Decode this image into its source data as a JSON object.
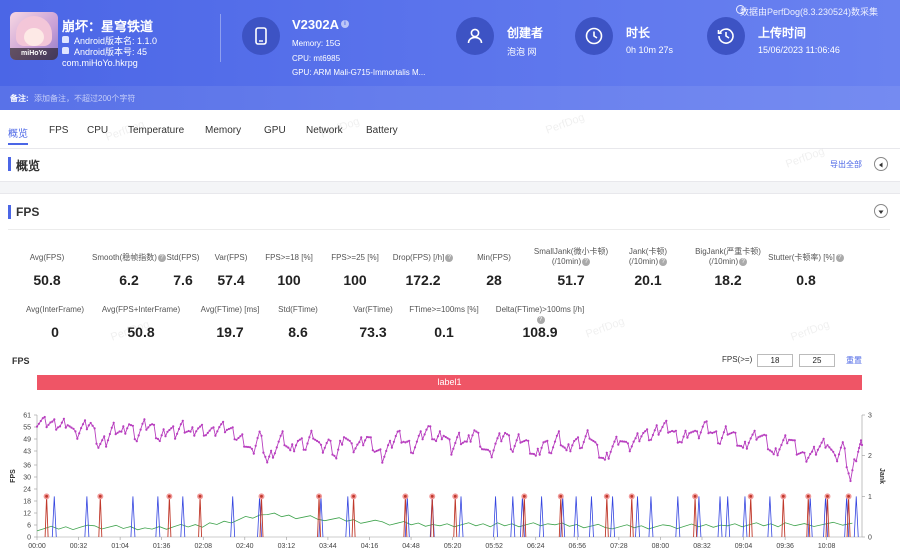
{
  "app": {
    "name": "崩坏：星穹铁道",
    "android_version": "Android版本名: 1.1.0",
    "android_code": "Android版本号: 45",
    "package": "com.miHoYo.hkrpg",
    "icon_text": "miHoYo"
  },
  "device": {
    "name": "V2302A",
    "memory": "Memory: 15G",
    "cpu": "CPU: mt6985",
    "gpu": "GPU: ARM Mali-G715-Immortalis M..."
  },
  "creator": {
    "title": "创建者",
    "value": "泡泡 网"
  },
  "duration": {
    "title": "时长",
    "value": "0h 10m 27s"
  },
  "upload": {
    "title": "上传时间",
    "value": "15/06/2023 11:06:46"
  },
  "source_note": "数据由PerfDog(8.3.230524)数采集",
  "note": {
    "label": "备注:",
    "placeholder": "添加备注，不超过200个字符"
  },
  "tabs": [
    "概览",
    "FPS",
    "CPU",
    "Temperature",
    "Memory",
    "GPU",
    "Network",
    "Battery"
  ],
  "overview": {
    "title": "概览",
    "export": "导出全部"
  },
  "fps_section": {
    "title": "FPS",
    "row1": [
      {
        "label": "Avg(FPS)",
        "value": "50.8"
      },
      {
        "label": "Smooth(稳帧指数)",
        "value": "6.2",
        "help": true
      },
      {
        "label": "Std(FPS)",
        "value": "7.6"
      },
      {
        "label": "Var(FPS)",
        "value": "57.4"
      },
      {
        "label": "FPS>=18 [%]",
        "value": "100"
      },
      {
        "label": "FPS>=25 [%]",
        "value": "100"
      },
      {
        "label": "Drop(FPS) [/h]",
        "value": "172.2",
        "help": true
      },
      {
        "label": "Min(FPS)",
        "value": "28"
      },
      {
        "label": "SmallJank(微小卡顿)\n(/10min)",
        "value": "51.7",
        "help": true
      },
      {
        "label": "Jank(卡顿)\n(/10min)",
        "value": "20.1",
        "help": true
      },
      {
        "label": "BigJank(严重卡顿)\n(/10min)",
        "value": "18.2",
        "help": true
      },
      {
        "label": "Stutter(卡顿率) [%]",
        "value": "0.8",
        "help": true
      }
    ],
    "row2": [
      {
        "label": "Avg(InterFrame)",
        "value": "0"
      },
      {
        "label": "Avg(FPS+InterFrame)",
        "value": "50.8"
      },
      {
        "label": "Avg(FTime) [ms]",
        "value": "19.7"
      },
      {
        "label": "Std(FTime)",
        "value": "8.6"
      },
      {
        "label": "Var(FTime)",
        "value": "73.3"
      },
      {
        "label": "FTime>=100ms [%]",
        "value": "0.1"
      },
      {
        "label": "Delta(FTime)>100ms [/h]",
        "value": "108.9",
        "help": true
      }
    ],
    "threshold_label": "FPS(>=)",
    "threshold1": "18",
    "threshold2": "25",
    "reset": "重置",
    "chart_label": "label1"
  },
  "watermark": "PerfDog",
  "colors": {
    "accent": "#4b66e6",
    "fps": "#b83fbf",
    "jank": "#3445e0",
    "bigjank": "#c0392b",
    "ftime": "#3fa34d",
    "label": "#ef5566"
  },
  "chart_data": {
    "type": "line",
    "title": "FPS",
    "ylabel": "FPS",
    "y2label": "Jank",
    "ylim": [
      0,
      61
    ],
    "y2lim": [
      0,
      3
    ],
    "yticks": [
      0,
      6,
      12,
      18,
      24,
      30,
      36,
      43,
      49,
      55,
      61
    ],
    "y2ticks": [
      0,
      1,
      2,
      3
    ],
    "xticks": [
      "00:00",
      "00:32",
      "01:04",
      "01:36",
      "02:08",
      "02:40",
      "03:12",
      "03:44",
      "04:16",
      "04:48",
      "05:20",
      "05:52",
      "06:24",
      "06:56",
      "07:28",
      "08:00",
      "08:32",
      "09:04",
      "09:36",
      "10:08"
    ],
    "series": [
      {
        "name": "FPS",
        "axis": "left",
        "points": [
          [
            0,
            58
          ],
          [
            8,
            58
          ],
          [
            16,
            57
          ],
          [
            24,
            56
          ],
          [
            32,
            58
          ],
          [
            40,
            50
          ],
          [
            48,
            55
          ],
          [
            56,
            57
          ],
          [
            64,
            46
          ],
          [
            72,
            48
          ],
          [
            80,
            55
          ],
          [
            88,
            52
          ],
          [
            96,
            57
          ],
          [
            104,
            50
          ],
          [
            112,
            56
          ],
          [
            120,
            55
          ],
          [
            128,
            48
          ],
          [
            136,
            54
          ],
          [
            144,
            52
          ],
          [
            152,
            56
          ],
          [
            160,
            52
          ],
          [
            168,
            55
          ],
          [
            176,
            53
          ],
          [
            184,
            52
          ],
          [
            192,
            55
          ],
          [
            200,
            54
          ],
          [
            208,
            50
          ],
          [
            216,
            48
          ],
          [
            224,
            42
          ],
          [
            232,
            52
          ],
          [
            240,
            38
          ],
          [
            248,
            44
          ],
          [
            256,
            50
          ],
          [
            264,
            42
          ],
          [
            272,
            48
          ],
          [
            280,
            45
          ],
          [
            288,
            52
          ],
          [
            296,
            44
          ],
          [
            304,
            48
          ],
          [
            312,
            40
          ],
          [
            320,
            52
          ],
          [
            328,
            44
          ],
          [
            336,
            46
          ],
          [
            344,
            50
          ],
          [
            352,
            44
          ],
          [
            360,
            40
          ],
          [
            368,
            46
          ],
          [
            376,
            52
          ],
          [
            384,
            48
          ],
          [
            392,
            44
          ],
          [
            400,
            50
          ],
          [
            408,
            54
          ],
          [
            416,
            48
          ],
          [
            424,
            52
          ],
          [
            432,
            44
          ],
          [
            440,
            50
          ],
          [
            448,
            47
          ],
          [
            456,
            54
          ],
          [
            464,
            46
          ],
          [
            472,
            40
          ],
          [
            480,
            48
          ],
          [
            488,
            52
          ],
          [
            496,
            44
          ],
          [
            504,
            50
          ],
          [
            512,
            46
          ],
          [
            520,
            40
          ],
          [
            528,
            48
          ],
          [
            536,
            44
          ],
          [
            544,
            50
          ],
          [
            552,
            42
          ],
          [
            560,
            48
          ],
          [
            568,
            46
          ],
          [
            576,
            52
          ],
          [
            584,
            44
          ],
          [
            592,
            38
          ],
          [
            600,
            46
          ],
          [
            608,
            50
          ],
          [
            616,
            44
          ],
          [
            624,
            48
          ],
          [
            632,
            52
          ],
          [
            640,
            50
          ],
          [
            648,
            54
          ],
          [
            656,
            56
          ],
          [
            664,
            52
          ],
          [
            672,
            48
          ],
          [
            680,
            54
          ],
          [
            688,
            50
          ],
          [
            696,
            56
          ],
          [
            704,
            52
          ],
          [
            712,
            48
          ],
          [
            720,
            54
          ],
          [
            728,
            50
          ],
          [
            736,
            44
          ],
          [
            744,
            50
          ],
          [
            752,
            52
          ],
          [
            760,
            48
          ],
          [
            768,
            40
          ],
          [
            776,
            46
          ],
          [
            784,
            50
          ],
          [
            792,
            44
          ],
          [
            800,
            40
          ],
          [
            808,
            42
          ],
          [
            816,
            46
          ],
          [
            824,
            48
          ],
          [
            832,
            38
          ],
          [
            840,
            46
          ],
          [
            848,
            28
          ],
          [
            856,
            44
          ],
          [
            860,
            46
          ]
        ]
      },
      {
        "name": "Jank",
        "axis": "right",
        "spikes_at": [
          18,
          52,
          100,
          126,
          152,
          204,
          232,
          296,
          324,
          386,
          412,
          442,
          478,
          496,
          506,
          526,
          548,
          562,
          578,
          600,
          626,
          640,
          668,
          690,
          712,
          720,
          738,
          764,
          806,
          822,
          844,
          854
        ]
      },
      {
        "name": "BigJank",
        "axis": "right",
        "spikes_at": [
          10,
          66,
          138,
          170,
          234,
          294,
          330,
          384,
          412,
          436,
          508,
          546,
          594,
          620,
          686,
          744,
          778,
          804,
          824,
          846
        ]
      },
      {
        "name": "FTime",
        "axis": "right",
        "points": [
          [
            0,
            0.2
          ],
          [
            60,
            0.25
          ],
          [
            120,
            0.22
          ],
          [
            180,
            0.3
          ],
          [
            240,
            0.55
          ],
          [
            300,
            0.45
          ],
          [
            360,
            0.35
          ],
          [
            420,
            0.3
          ],
          [
            480,
            0.3
          ],
          [
            540,
            0.3
          ],
          [
            600,
            0.25
          ],
          [
            660,
            0.25
          ],
          [
            720,
            0.3
          ],
          [
            780,
            0.3
          ],
          [
            860,
            0.32
          ]
        ]
      }
    ]
  }
}
